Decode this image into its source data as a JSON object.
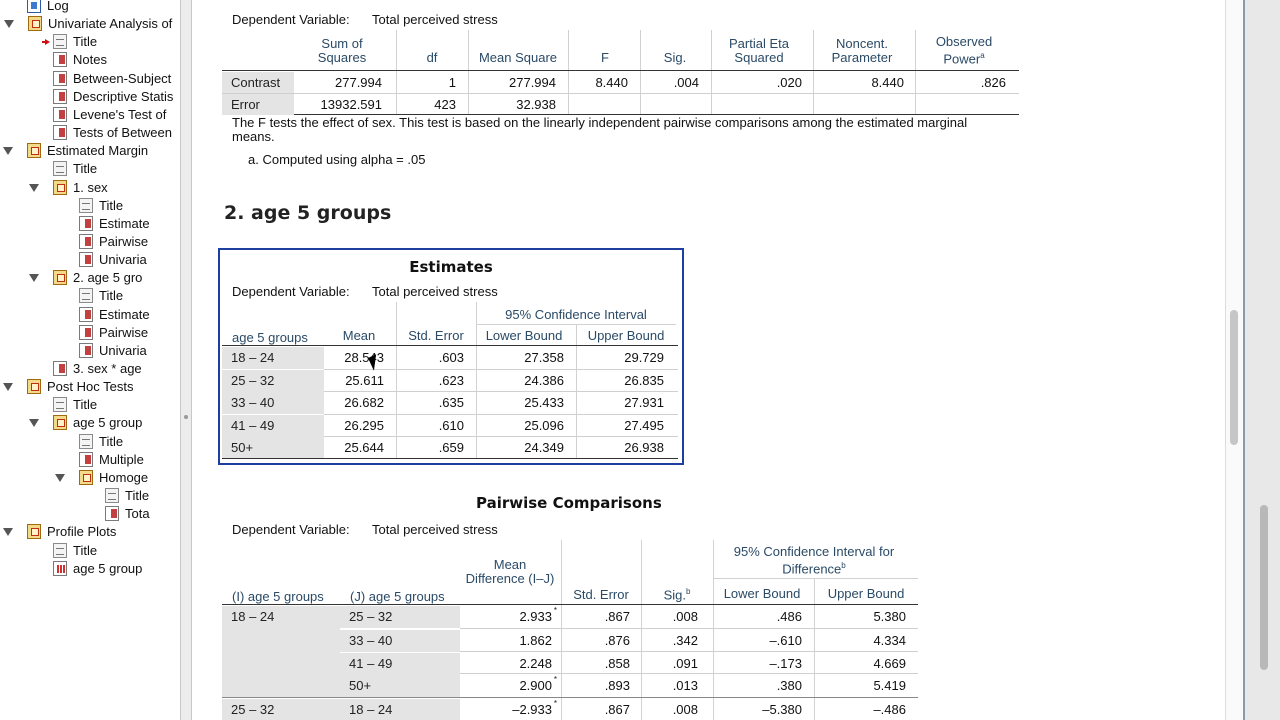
{
  "nav": {
    "items": [
      {
        "label": "Log",
        "icon": "log-icon"
      },
      {
        "label": "Univariate Analysis of",
        "icon": "book-icon"
      },
      {
        "label": "Title",
        "icon": "page-icon"
      },
      {
        "label": "Notes",
        "icon": "table-icon"
      },
      {
        "label": "Between-Subject",
        "icon": "table-icon"
      },
      {
        "label": "Descriptive Statis",
        "icon": "table-icon"
      },
      {
        "label": "Levene's Test of",
        "icon": "table-icon"
      },
      {
        "label": "Tests of Between",
        "icon": "table-icon"
      },
      {
        "label": "Estimated Margin",
        "icon": "book-icon"
      },
      {
        "label": "Title",
        "icon": "page-icon"
      },
      {
        "label": "1. sex",
        "icon": "book-icon"
      },
      {
        "label": "Title",
        "icon": "page-icon"
      },
      {
        "label": "Estimate",
        "icon": "table-icon"
      },
      {
        "label": "Pairwise",
        "icon": "table-icon"
      },
      {
        "label": "Univaria",
        "icon": "table-icon"
      },
      {
        "label": "2. age 5 gro",
        "icon": "book-icon"
      },
      {
        "label": "Title",
        "icon": "page-icon"
      },
      {
        "label": "Estimate",
        "icon": "table-icon"
      },
      {
        "label": "Pairwise",
        "icon": "table-icon"
      },
      {
        "label": "Univaria",
        "icon": "table-icon"
      },
      {
        "label": "3. sex * age",
        "icon": "table-icon"
      },
      {
        "label": "Post Hoc Tests",
        "icon": "book-icon"
      },
      {
        "label": "Title",
        "icon": "page-icon"
      },
      {
        "label": "age 5 group",
        "icon": "book-icon"
      },
      {
        "label": "Title",
        "icon": "page-icon"
      },
      {
        "label": "Multiple",
        "icon": "table-icon"
      },
      {
        "label": "Homoge",
        "icon": "book-icon"
      },
      {
        "label": "Title",
        "icon": "page-icon"
      },
      {
        "label": "Tota",
        "icon": "table-icon"
      },
      {
        "label": "Profile Plots",
        "icon": "book-icon"
      },
      {
        "label": "Title",
        "icon": "page-icon"
      },
      {
        "label": "age 5 group",
        "icon": "chart-icon"
      }
    ]
  },
  "univariate": {
    "dv_label": "Dependent Variable:",
    "dv_value": "Total perceived stress",
    "headers": {
      "ss": "Sum of Squares",
      "df": "df",
      "ms": "Mean Square",
      "f": "F",
      "sig": "Sig.",
      "eta": "Partial Eta Squared",
      "noncent": "Noncent. Parameter",
      "power": "Observed Power",
      "power_sup": "a"
    },
    "rows": [
      {
        "label": "Contrast",
        "ss": "277.994",
        "df": "1",
        "ms": "277.994",
        "f": "8.440",
        "sig": ".004",
        "eta": ".020",
        "noncent": "8.440",
        "power": ".826"
      },
      {
        "label": "Error",
        "ss": "13932.591",
        "df": "423",
        "ms": "32.938",
        "f": "",
        "sig": "",
        "eta": "",
        "noncent": "",
        "power": ""
      }
    ],
    "footnote": "The F tests the effect of sex. This test is based on the linearly independent pairwise comparisons among the estimated marginal means.",
    "footnote_a": "a. Computed using alpha = .05"
  },
  "section2_title": "2. age 5 groups",
  "estimates": {
    "title": "Estimates",
    "dv_label": "Dependent Variable:",
    "dv_value": "Total perceived stress",
    "headers": {
      "group": "age 5 groups",
      "mean": "Mean",
      "se": "Std. Error",
      "ci": "95% Confidence Interval",
      "lower": "Lower Bound",
      "upper": "Upper Bound"
    },
    "rows": [
      {
        "group": "18 – 24",
        "mean": "28.543",
        "se": ".603",
        "lower": "27.358",
        "upper": "29.729"
      },
      {
        "group": "25 – 32",
        "mean": "25.611",
        "se": ".623",
        "lower": "24.386",
        "upper": "26.835"
      },
      {
        "group": "33 – 40",
        "mean": "26.682",
        "se": ".635",
        "lower": "25.433",
        "upper": "27.931"
      },
      {
        "group": "41 – 49",
        "mean": "26.295",
        "se": ".610",
        "lower": "25.096",
        "upper": "27.495"
      },
      {
        "group": "50+",
        "mean": "25.644",
        "se": ".659",
        "lower": "24.349",
        "upper": "26.938"
      }
    ]
  },
  "pairwise": {
    "title": "Pairwise Comparisons",
    "dv_label": "Dependent Variable:",
    "dv_value": "Total perceived stress",
    "headers": {
      "i": "(I) age 5 groups",
      "j": "(J) age 5 groups",
      "md": "Mean Difference (I–J)",
      "se": "Std. Error",
      "sig": "Sig.",
      "sig_sup": "b",
      "ci": "95% Confidence Interval for Difference",
      "ci_sup": "b",
      "lower": "Lower Bound",
      "upper": "Upper Bound"
    },
    "rows": [
      {
        "i": "18 – 24",
        "j": "25 – 32",
        "md": "2.933",
        "star": "*",
        "se": ".867",
        "sig": ".008",
        "lower": ".486",
        "upper": "5.380"
      },
      {
        "i": "",
        "j": "33 – 40",
        "md": "1.862",
        "star": "",
        "se": ".876",
        "sig": ".342",
        "lower": "–.610",
        "upper": "4.334"
      },
      {
        "i": "",
        "j": "41 – 49",
        "md": "2.248",
        "star": "",
        "se": ".858",
        "sig": ".091",
        "lower": "–.173",
        "upper": "4.669"
      },
      {
        "i": "",
        "j": "50+",
        "md": "2.900",
        "star": "*",
        "se": ".893",
        "sig": ".013",
        "lower": ".380",
        "upper": "5.419"
      },
      {
        "i": "25 – 32",
        "j": "18 – 24",
        "md": "–2.933",
        "star": "*",
        "se": ".867",
        "sig": ".008",
        "lower": "–5.380",
        "upper": "–.486"
      }
    ]
  }
}
